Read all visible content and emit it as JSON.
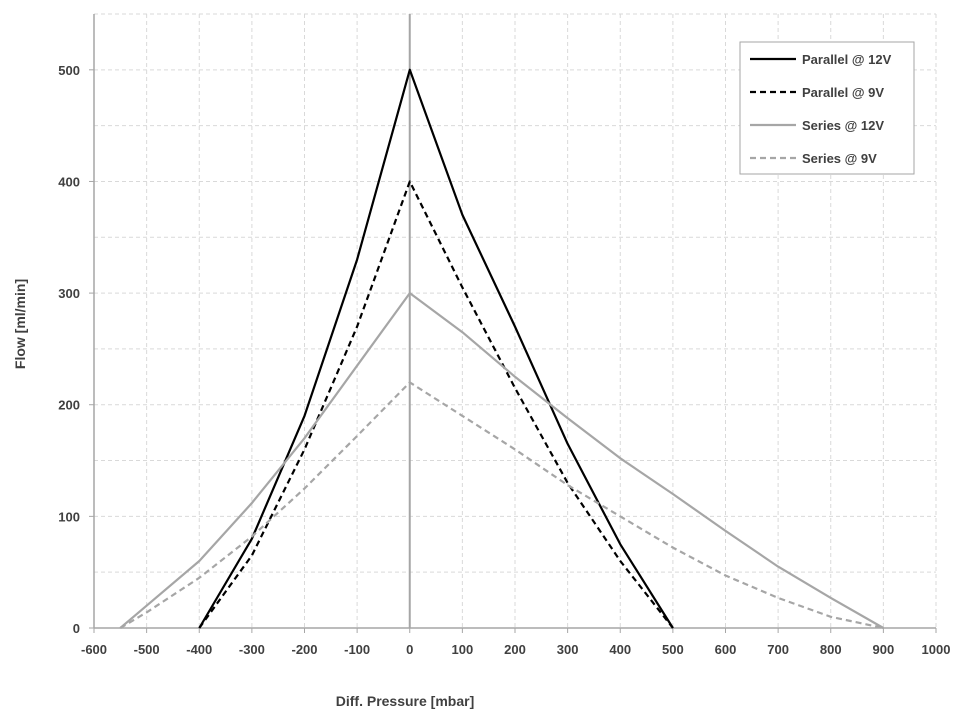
{
  "chart_data": {
    "type": "line",
    "title": "",
    "xlabel": "Diff. Pressure [mbar]",
    "ylabel": "Flow [ml/min]",
    "xlim": [
      -600,
      1000
    ],
    "ylim": [
      0,
      550
    ],
    "xticks": [
      -600,
      -500,
      -400,
      -300,
      -200,
      -100,
      0,
      100,
      200,
      300,
      400,
      500,
      600,
      700,
      800,
      900,
      1000
    ],
    "yticks": [
      0,
      100,
      200,
      300,
      400,
      500
    ],
    "grid": true,
    "legend_position": "top-right",
    "series": [
      {
        "name": "Parallel @ 12V",
        "color": "#000000",
        "dash": "solid",
        "points": [
          [
            -400,
            0
          ],
          [
            -300,
            80
          ],
          [
            -200,
            190
          ],
          [
            -100,
            330
          ],
          [
            0,
            500
          ],
          [
            100,
            370
          ],
          [
            200,
            270
          ],
          [
            300,
            165
          ],
          [
            400,
            75
          ],
          [
            500,
            0
          ]
        ]
      },
      {
        "name": "Parallel @ 9V",
        "color": "#000000",
        "dash": "dashed",
        "points": [
          [
            -400,
            0
          ],
          [
            -300,
            65
          ],
          [
            -200,
            160
          ],
          [
            -100,
            270
          ],
          [
            0,
            400
          ],
          [
            100,
            305
          ],
          [
            200,
            215
          ],
          [
            300,
            130
          ],
          [
            400,
            60
          ],
          [
            500,
            0
          ]
        ]
      },
      {
        "name": "Series @ 12V",
        "color": "#a6a6a6",
        "dash": "solid",
        "points": [
          [
            -550,
            0
          ],
          [
            -500,
            20
          ],
          [
            -400,
            60
          ],
          [
            -300,
            112
          ],
          [
            -200,
            170
          ],
          [
            -100,
            235
          ],
          [
            0,
            300
          ],
          [
            100,
            265
          ],
          [
            200,
            225
          ],
          [
            300,
            188
          ],
          [
            400,
            152
          ],
          [
            500,
            120
          ],
          [
            600,
            87
          ],
          [
            700,
            55
          ],
          [
            800,
            27
          ],
          [
            900,
            0
          ]
        ]
      },
      {
        "name": "Series @ 9V",
        "color": "#a6a6a6",
        "dash": "dashed",
        "points": [
          [
            -550,
            0
          ],
          [
            -500,
            14
          ],
          [
            -400,
            45
          ],
          [
            -300,
            82
          ],
          [
            -200,
            125
          ],
          [
            -100,
            172
          ],
          [
            0,
            220
          ],
          [
            100,
            190
          ],
          [
            200,
            160
          ],
          [
            300,
            128
          ],
          [
            400,
            100
          ],
          [
            500,
            72
          ],
          [
            600,
            47
          ],
          [
            700,
            27
          ],
          [
            800,
            10
          ],
          [
            900,
            0
          ]
        ]
      }
    ]
  }
}
